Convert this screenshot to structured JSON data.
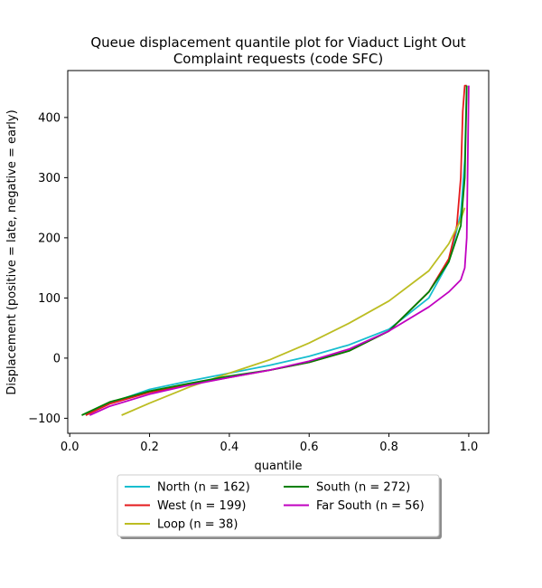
{
  "chart_data": {
    "type": "line",
    "title_line1": "Queue displacement quantile plot for Viaduct Light Out",
    "title_line2": "Complaint  requests (code SFC)",
    "xlabel": "quantile",
    "ylabel": "Displacement (positive = late, negative = early)",
    "xlim": [
      -0.005,
      1.05
    ],
    "ylim": [
      -125,
      478
    ],
    "xticks": [
      0.0,
      0.2,
      0.4,
      0.6,
      0.8,
      1.0
    ],
    "xtick_labels": [
      "0.0",
      "0.2",
      "0.4",
      "0.6",
      "0.8",
      "1.0"
    ],
    "yticks": [
      -100,
      0,
      100,
      200,
      300,
      400
    ],
    "ytick_labels": [
      "−100",
      "0",
      "100",
      "200",
      "300",
      "400"
    ],
    "legend_position": "below-center",
    "series": [
      {
        "name": "North (n = 162)",
        "color": "#17becf",
        "x": [
          0.04,
          0.1,
          0.2,
          0.3,
          0.4,
          0.5,
          0.6,
          0.7,
          0.8,
          0.9,
          0.95,
          0.98,
          0.99,
          0.995
        ],
        "y": [
          -95,
          -75,
          -52,
          -38,
          -25,
          -12,
          3,
          22,
          48,
          100,
          160,
          240,
          330,
          453
        ]
      },
      {
        "name": "West (n = 199)",
        "color": "#e41a1c",
        "x": [
          0.04,
          0.1,
          0.2,
          0.3,
          0.4,
          0.5,
          0.6,
          0.7,
          0.8,
          0.9,
          0.95,
          0.97,
          0.98,
          0.985,
          0.99,
          0.995
        ],
        "y": [
          -95,
          -76,
          -57,
          -44,
          -32,
          -20,
          -7,
          12,
          45,
          110,
          165,
          220,
          300,
          410,
          453,
          453
        ]
      },
      {
        "name": "Loop (n = 38)",
        "color": "#bcbd22",
        "x": [
          0.13,
          0.2,
          0.3,
          0.4,
          0.5,
          0.6,
          0.7,
          0.8,
          0.9,
          0.95,
          0.98,
          0.99
        ],
        "y": [
          -95,
          -75,
          -48,
          -25,
          -3,
          25,
          58,
          95,
          145,
          190,
          230,
          250
        ]
      },
      {
        "name": "South (n = 272)",
        "color": "#008000",
        "x": [
          0.03,
          0.1,
          0.2,
          0.3,
          0.4,
          0.5,
          0.6,
          0.7,
          0.8,
          0.9,
          0.95,
          0.98,
          0.99,
          0.995
        ],
        "y": [
          -95,
          -73,
          -55,
          -42,
          -30,
          -20,
          -7,
          12,
          45,
          110,
          160,
          220,
          300,
          453
        ]
      },
      {
        "name": "Far South (n = 56)",
        "color": "#c000c0",
        "x": [
          0.05,
          0.1,
          0.2,
          0.3,
          0.4,
          0.5,
          0.6,
          0.7,
          0.8,
          0.9,
          0.95,
          0.98,
          0.99,
          0.995,
          1.0
        ],
        "y": [
          -95,
          -80,
          -60,
          -45,
          -32,
          -20,
          -5,
          15,
          45,
          85,
          110,
          130,
          150,
          200,
          453
        ]
      }
    ]
  }
}
